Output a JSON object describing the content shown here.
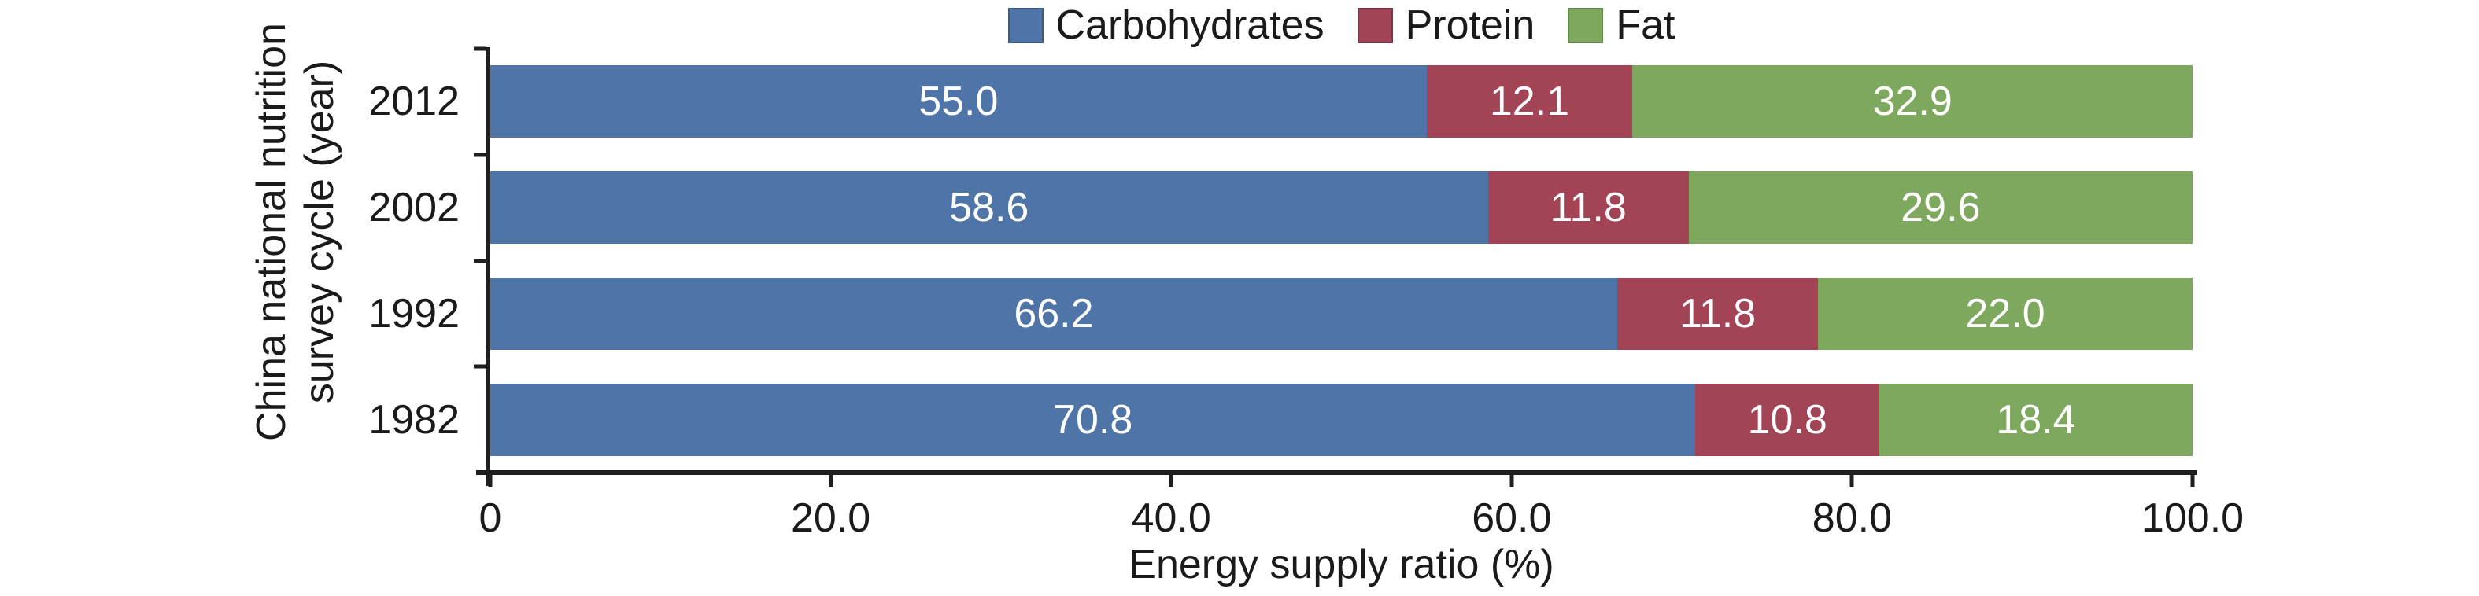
{
  "chart_data": {
    "type": "bar",
    "orientation": "horizontal",
    "stacked": true,
    "xlabel": "Energy supply ratio (%)",
    "ylabel_lines": [
      "China national nutrition",
      "survey cycle (year)"
    ],
    "categories": [
      "2012",
      "2002",
      "1992",
      "1982"
    ],
    "series": [
      {
        "name": "Carbohydrates",
        "color": "#4E74A8",
        "values": [
          55.0,
          58.6,
          66.2,
          70.8
        ],
        "labels": [
          "55.0",
          "58.6",
          "66.2",
          "70.8"
        ]
      },
      {
        "name": "Protein",
        "color": "#A24456",
        "values": [
          12.1,
          11.8,
          11.8,
          10.8
        ],
        "labels": [
          "12.1",
          "11.8",
          "11.8",
          "10.8"
        ]
      },
      {
        "name": "Fat",
        "color": "#7EA85E",
        "values": [
          32.9,
          29.6,
          22.0,
          18.4
        ],
        "labels": [
          "32.9",
          "29.6",
          "22.0",
          "18.4"
        ]
      }
    ],
    "xlim": [
      0,
      100
    ],
    "x_ticks": [
      {
        "label": "0",
        "value": 0
      },
      {
        "label": "20.0",
        "value": 20
      },
      {
        "label": "40.0",
        "value": 40
      },
      {
        "label": "60.0",
        "value": 60
      },
      {
        "label": "80.0",
        "value": 80
      },
      {
        "label": "100.0",
        "value": 100
      }
    ],
    "legend_position": "top",
    "grid": false,
    "axis_color": "#1f1f1f",
    "text_color": "#1a1a1a",
    "bar_label_color": "#ffffff"
  }
}
